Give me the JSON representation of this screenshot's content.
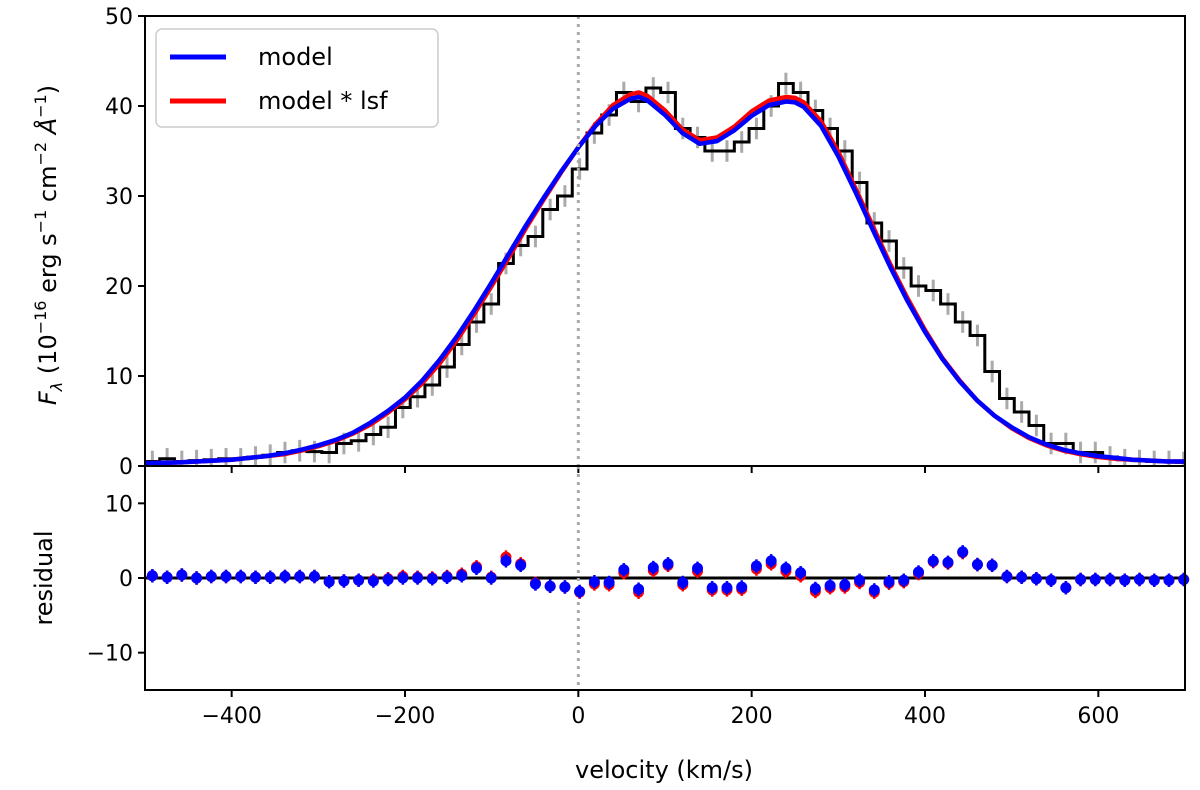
{
  "chart_data": {
    "type": "line",
    "xlabel": "velocity (km/s)",
    "xlim": [
      -500,
      700
    ],
    "x_ticks": [
      -400,
      -200,
      0,
      200,
      400,
      600
    ],
    "x_tick_labels": [
      "−400",
      "−200",
      "0",
      "200",
      "400",
      "600"
    ],
    "reference_line_x": 0,
    "colors": {
      "data": "#000000",
      "errors": "#aaaaaa",
      "model": "#0000ff",
      "model_lsf": "#ff0000",
      "refline": "#aaaaaa"
    },
    "top_panel": {
      "ylabel_main": "F",
      "ylabel_sub": "λ",
      "ylabel_rest": " (10",
      "ylabel_exp1": "−16",
      "ylabel_mid1": " erg s",
      "ylabel_exp2": "−1",
      "ylabel_mid2": " cm",
      "ylabel_exp3": "−2",
      "ylabel_mid3": " Å",
      "ylabel_exp4": "−1",
      "ylabel_end": ")",
      "ylim": [
        0,
        50
      ],
      "y_ticks": [
        0,
        10,
        20,
        30,
        40,
        50
      ],
      "y_tick_labels": [
        "0",
        "10",
        "20",
        "30",
        "40",
        "50"
      ],
      "legend": {
        "location": "top-left",
        "entries": [
          {
            "label": "model",
            "color": "#0000ff"
          },
          {
            "label": "model * lsf",
            "color": "#ff0000"
          }
        ]
      },
      "data_step": {
        "x": [
          -500,
          -483,
          -466,
          -449,
          -432,
          -415,
          -398,
          -381,
          -364,
          -347,
          -330,
          -313,
          -296,
          -279,
          -262,
          -245,
          -228,
          -211,
          -194,
          -177,
          -160,
          -143,
          -126,
          -109,
          -92,
          -75,
          -58,
          -41,
          -24,
          -7,
          10,
          27,
          44,
          61,
          78,
          95,
          112,
          129,
          146,
          163,
          180,
          197,
          214,
          231,
          248,
          265,
          282,
          299,
          316,
          333,
          350,
          367,
          384,
          401,
          418,
          435,
          452,
          469,
          486,
          503,
          520,
          537,
          554,
          571,
          588,
          605,
          622,
          639,
          656,
          673,
          690
        ],
        "y": [
          0.5,
          0.8,
          0.5,
          0.6,
          0.7,
          0.8,
          0.8,
          1.0,
          1.2,
          1.5,
          1.7,
          1.6,
          1.5,
          2.5,
          2.8,
          3.5,
          4.3,
          6.5,
          7.7,
          9.0,
          11.0,
          13.5,
          16.0,
          18.0,
          22.5,
          24.5,
          25.5,
          28.5,
          30.0,
          33.0,
          37.0,
          39.0,
          41.5,
          40.5,
          42.0,
          41.5,
          37.5,
          36.5,
          35.0,
          35.0,
          36.0,
          37.5,
          40.0,
          42.5,
          41.5,
          39.5,
          37.5,
          35.0,
          31.5,
          27.0,
          25.0,
          22.0,
          20.0,
          19.5,
          18.0,
          16.0,
          14.5,
          10.5,
          7.5,
          6.0,
          4.5,
          2.5,
          2.5,
          1.5,
          1.5,
          1.0,
          0.7,
          0.6,
          0.5,
          0.5,
          0.4
        ],
        "error": 1.2
      },
      "model_blue": {
        "x": [
          -500,
          -480,
          -460,
          -440,
          -420,
          -400,
          -380,
          -360,
          -340,
          -320,
          -300,
          -280,
          -260,
          -240,
          -220,
          -200,
          -180,
          -160,
          -140,
          -120,
          -100,
          -80,
          -60,
          -40,
          -20,
          0,
          20,
          40,
          60,
          70,
          80,
          100,
          120,
          140,
          160,
          180,
          200,
          220,
          240,
          250,
          260,
          280,
          300,
          320,
          340,
          360,
          380,
          400,
          420,
          440,
          460,
          480,
          500,
          520,
          540,
          560,
          580,
          600,
          620,
          640,
          660,
          680,
          700
        ],
        "y": [
          0.3,
          0.35,
          0.4,
          0.5,
          0.6,
          0.7,
          0.9,
          1.1,
          1.4,
          1.8,
          2.3,
          2.9,
          3.7,
          4.8,
          6.1,
          7.6,
          9.5,
          11.8,
          14.4,
          17.3,
          20.4,
          23.6,
          26.8,
          29.8,
          32.7,
          35.4,
          37.8,
          39.7,
          40.8,
          41.0,
          40.6,
          39.0,
          37.0,
          35.8,
          36.1,
          37.3,
          38.9,
          40.1,
          40.5,
          40.4,
          39.9,
          37.8,
          34.4,
          30.4,
          26.2,
          22.1,
          18.3,
          14.9,
          11.9,
          9.4,
          7.3,
          5.6,
          4.3,
          3.2,
          2.4,
          1.8,
          1.4,
          1.1,
          0.9,
          0.7,
          0.6,
          0.5,
          0.5
        ]
      },
      "model_red": {
        "x": [
          -500,
          -480,
          -460,
          -440,
          -420,
          -400,
          -380,
          -360,
          -340,
          -320,
          -300,
          -280,
          -260,
          -240,
          -220,
          -200,
          -180,
          -160,
          -140,
          -120,
          -100,
          -80,
          -60,
          -40,
          -20,
          0,
          20,
          40,
          60,
          70,
          80,
          100,
          120,
          140,
          160,
          180,
          200,
          220,
          240,
          250,
          260,
          280,
          300,
          320,
          340,
          360,
          380,
          400,
          420,
          440,
          460,
          480,
          500,
          520,
          540,
          560,
          580,
          600,
          620,
          640,
          660,
          680,
          700
        ],
        "y": [
          0.3,
          0.35,
          0.4,
          0.5,
          0.6,
          0.7,
          0.9,
          1.1,
          1.3,
          1.7,
          2.2,
          2.8,
          3.6,
          4.6,
          5.9,
          7.4,
          9.2,
          11.4,
          14.0,
          16.9,
          20.0,
          23.2,
          26.5,
          29.6,
          32.6,
          35.4,
          38.0,
          40.1,
          41.3,
          41.5,
          41.1,
          39.5,
          37.4,
          36.2,
          36.5,
          37.7,
          39.4,
          40.6,
          41.0,
          40.9,
          40.4,
          38.3,
          34.9,
          30.8,
          26.6,
          22.4,
          18.6,
          15.1,
          12.0,
          9.5,
          7.3,
          5.6,
          4.2,
          3.1,
          2.3,
          1.7,
          1.3,
          1.0,
          0.8,
          0.7,
          0.6,
          0.5,
          0.5
        ]
      }
    },
    "bottom_panel": {
      "ylabel": "residual",
      "ylim": [
        -15,
        15
      ],
      "y_ticks": [
        -10,
        0,
        10
      ],
      "y_tick_labels": [
        "−10",
        "0",
        "10"
      ],
      "zero_line": 0,
      "x": [
        -500,
        -483,
        -466,
        -449,
        -432,
        -415,
        -398,
        -381,
        -364,
        -347,
        -330,
        -313,
        -296,
        -279,
        -262,
        -245,
        -228,
        -211,
        -194,
        -177,
        -160,
        -143,
        -126,
        -109,
        -92,
        -75,
        -58,
        -41,
        -24,
        -7,
        10,
        27,
        44,
        61,
        78,
        95,
        112,
        129,
        146,
        163,
        180,
        197,
        214,
        231,
        248,
        265,
        282,
        299,
        316,
        333,
        350,
        367,
        384,
        401,
        418,
        435,
        452,
        469,
        486,
        503,
        520,
        537,
        554,
        571,
        588,
        605,
        622,
        639,
        656,
        673,
        690
      ],
      "residual_blue": [
        0.3,
        0.1,
        0.4,
        0.0,
        0.2,
        0.2,
        0.2,
        0.1,
        0.1,
        0.2,
        0.2,
        0.2,
        -0.5,
        -0.4,
        -0.3,
        -0.4,
        -0.2,
        0.0,
        0.0,
        -0.1,
        0.1,
        0.3,
        1.3,
        0.0,
        2.3,
        1.7,
        -0.8,
        -1.1,
        -1.2,
        -1.8,
        -0.5,
        -0.6,
        1.1,
        -1.5,
        1.4,
        1.9,
        -0.6,
        1.3,
        -1.3,
        -1.3,
        -1.2,
        1.6,
        2.3,
        1.3,
        0.7,
        -1.4,
        -1.0,
        -0.9,
        -0.3,
        -1.6,
        -0.5,
        -0.3,
        0.8,
        2.3,
        2.1,
        3.5,
        1.8,
        1.7,
        0.2,
        0.1,
        -0.1,
        -0.3,
        -1.3,
        -0.2,
        -0.2,
        -0.2,
        -0.3,
        -0.2,
        -0.3,
        -0.3,
        -0.2
      ],
      "residual_red": [
        0.3,
        0.1,
        0.4,
        0.0,
        0.2,
        0.2,
        0.2,
        0.1,
        0.1,
        0.2,
        0.2,
        0.2,
        -0.5,
        -0.4,
        -0.3,
        -0.3,
        -0.1,
        0.2,
        0.1,
        0.0,
        0.2,
        0.5,
        1.5,
        0.1,
        2.8,
        1.9,
        -0.7,
        -1.1,
        -1.2,
        -1.9,
        -0.8,
        -0.9,
        0.7,
        -1.9,
        1.0,
        1.7,
        -0.9,
        0.9,
        -1.6,
        -1.6,
        -1.5,
        1.2,
        1.9,
        0.9,
        0.3,
        -1.8,
        -1.3,
        -1.2,
        -0.6,
        -1.9,
        -0.7,
        -0.5,
        0.6,
        2.2,
        2.0,
        3.4,
        1.8,
        1.7,
        0.2,
        0.1,
        -0.1,
        -0.3,
        -1.3,
        -0.2,
        -0.2,
        -0.2,
        -0.3,
        -0.2,
        -0.3,
        -0.3,
        -0.2
      ],
      "error": 0.9
    }
  }
}
